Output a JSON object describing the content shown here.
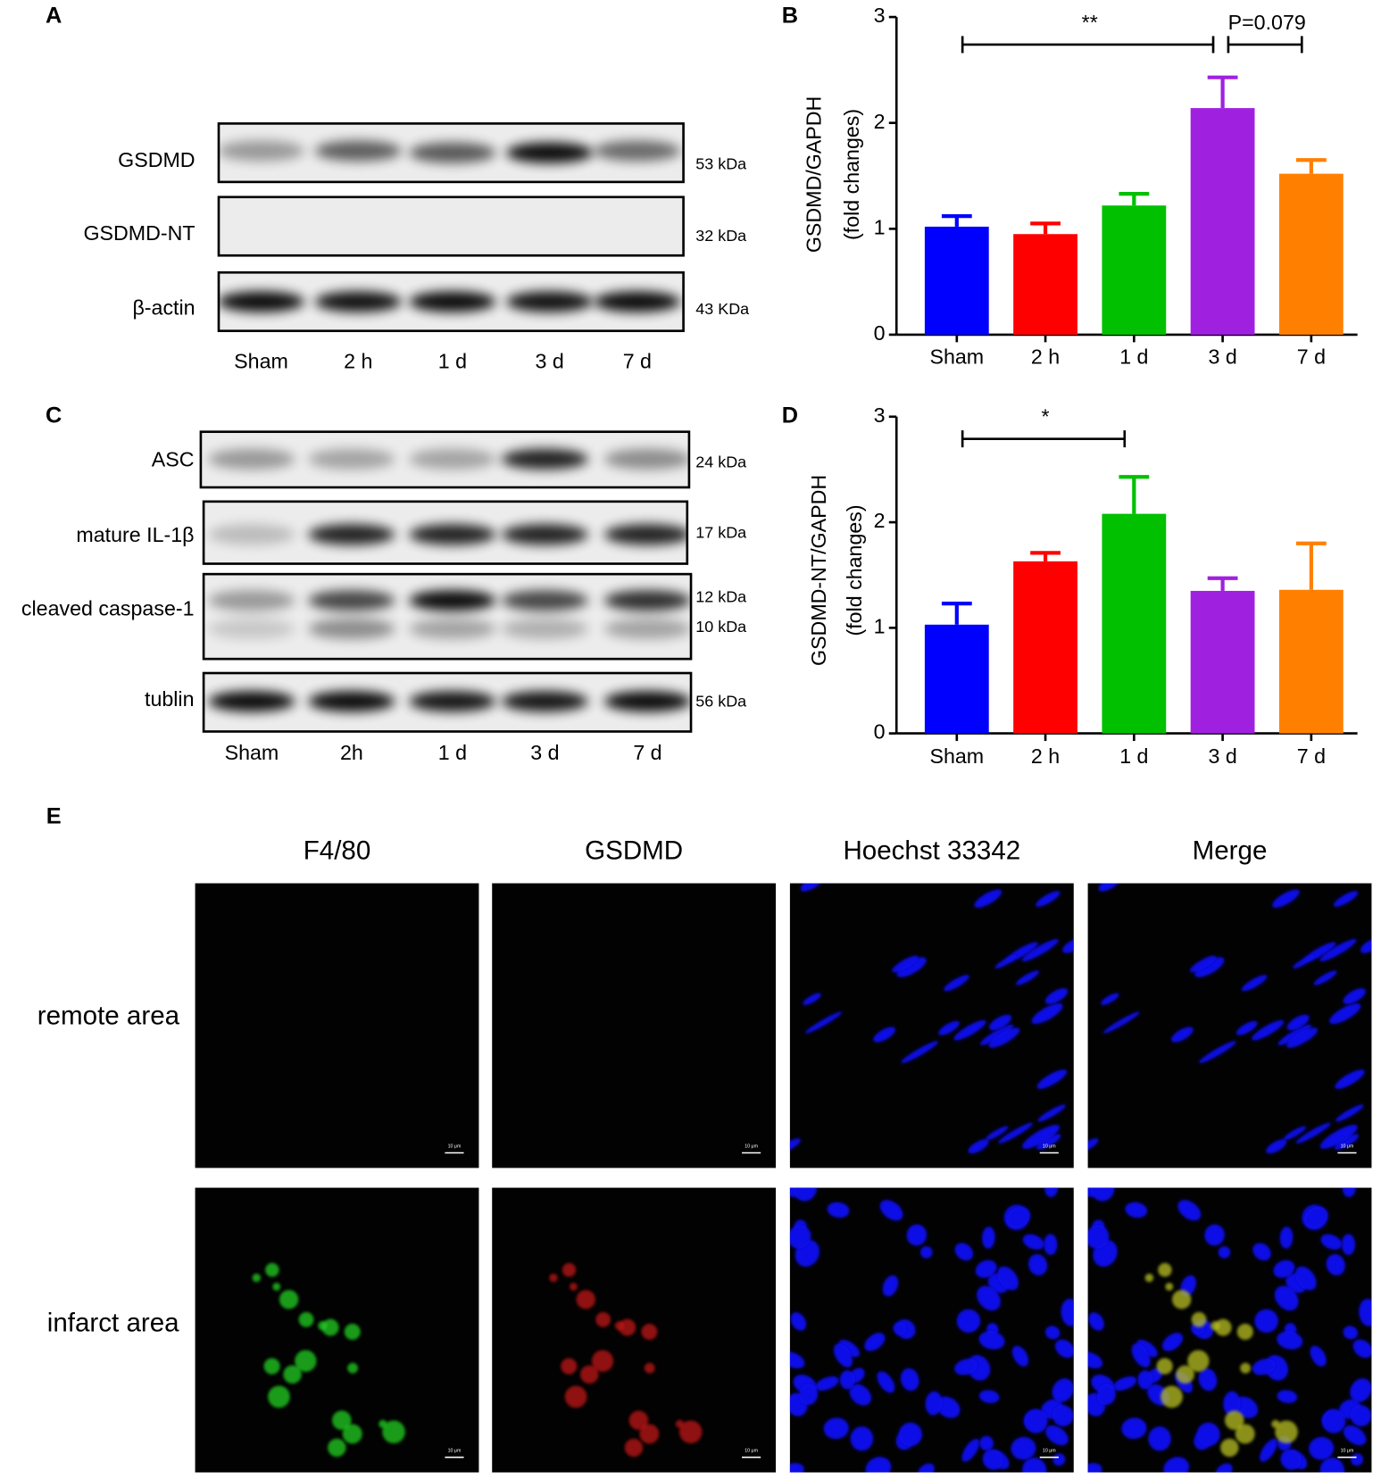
{
  "panel_labels": [
    "A",
    "B",
    "C",
    "D",
    "E"
  ],
  "blot_a": {
    "rows": [
      {
        "label": "GSDMD",
        "kda": [
          "53 kDa"
        ]
      },
      {
        "label": "GSDMD-NT",
        "kda": [
          "32 kDa"
        ]
      },
      {
        "label": "β-actin",
        "kda": [
          "43 KDa"
        ]
      }
    ],
    "lanes": [
      "Sham",
      "2 h",
      "1 d",
      "3 d",
      "7 d"
    ]
  },
  "blot_c": {
    "rows": [
      {
        "label": "ASC",
        "kda": [
          "24 kDa"
        ]
      },
      {
        "label": "mature IL-1β",
        "kda": [
          "17 kDa"
        ]
      },
      {
        "label": "cleaved caspase-1",
        "kda": [
          "12 kDa",
          "10 kDa"
        ]
      },
      {
        "label": "tublin",
        "kda": [
          "56 kDa"
        ]
      }
    ],
    "lanes": [
      "Sham",
      "2h",
      "1 d",
      "3 d",
      "7 d"
    ]
  },
  "chart_data": [
    {
      "type": "bar",
      "y_label": [
        "GSDMD/GAPDH",
        "(fold changes)"
      ],
      "categories": [
        "Sham",
        "2 h",
        "1 d",
        "3 d",
        "7 d"
      ],
      "values": [
        1.02,
        0.95,
        1.22,
        2.14,
        1.52
      ],
      "errors": [
        0.1,
        0.1,
        0.11,
        0.29,
        0.13
      ],
      "colors": [
        "#0000ff",
        "#ff0000",
        "#00c000",
        "#a020e0",
        "#ff8000"
      ],
      "ylim": [
        0,
        3
      ],
      "yticks": [
        0,
        1,
        2,
        3
      ],
      "annotations": [
        {
          "label": "**",
          "from": "Sham",
          "to": "3 d",
          "y": 2.74
        },
        {
          "label": "P=0.079",
          "from": "3 d",
          "to": "7 d",
          "y": 2.74
        }
      ]
    },
    {
      "type": "bar",
      "y_label": [
        "GSDMD-NT/GAPDH",
        "(fold changes)"
      ],
      "categories": [
        "Sham",
        "2 h",
        "1 d",
        "3 d",
        "7 d"
      ],
      "values": [
        1.03,
        1.63,
        2.08,
        1.35,
        1.36
      ],
      "errors": [
        0.2,
        0.08,
        0.35,
        0.12,
        0.44
      ],
      "colors": [
        "#0000ff",
        "#ff0000",
        "#00c000",
        "#a020e0",
        "#ff8000"
      ],
      "ylim": [
        0,
        3
      ],
      "yticks": [
        0,
        1,
        2,
        3
      ],
      "annotations": [
        {
          "label": "*",
          "from": "Sham",
          "to": "1 d",
          "y": 2.79
        }
      ]
    }
  ],
  "microscopy": {
    "columns": [
      "F4/80",
      "GSDMD",
      "Hoechst 33342",
      "Merge"
    ],
    "rows": [
      "remote area",
      "infarct area"
    ],
    "scale_bar": "10 μm"
  }
}
